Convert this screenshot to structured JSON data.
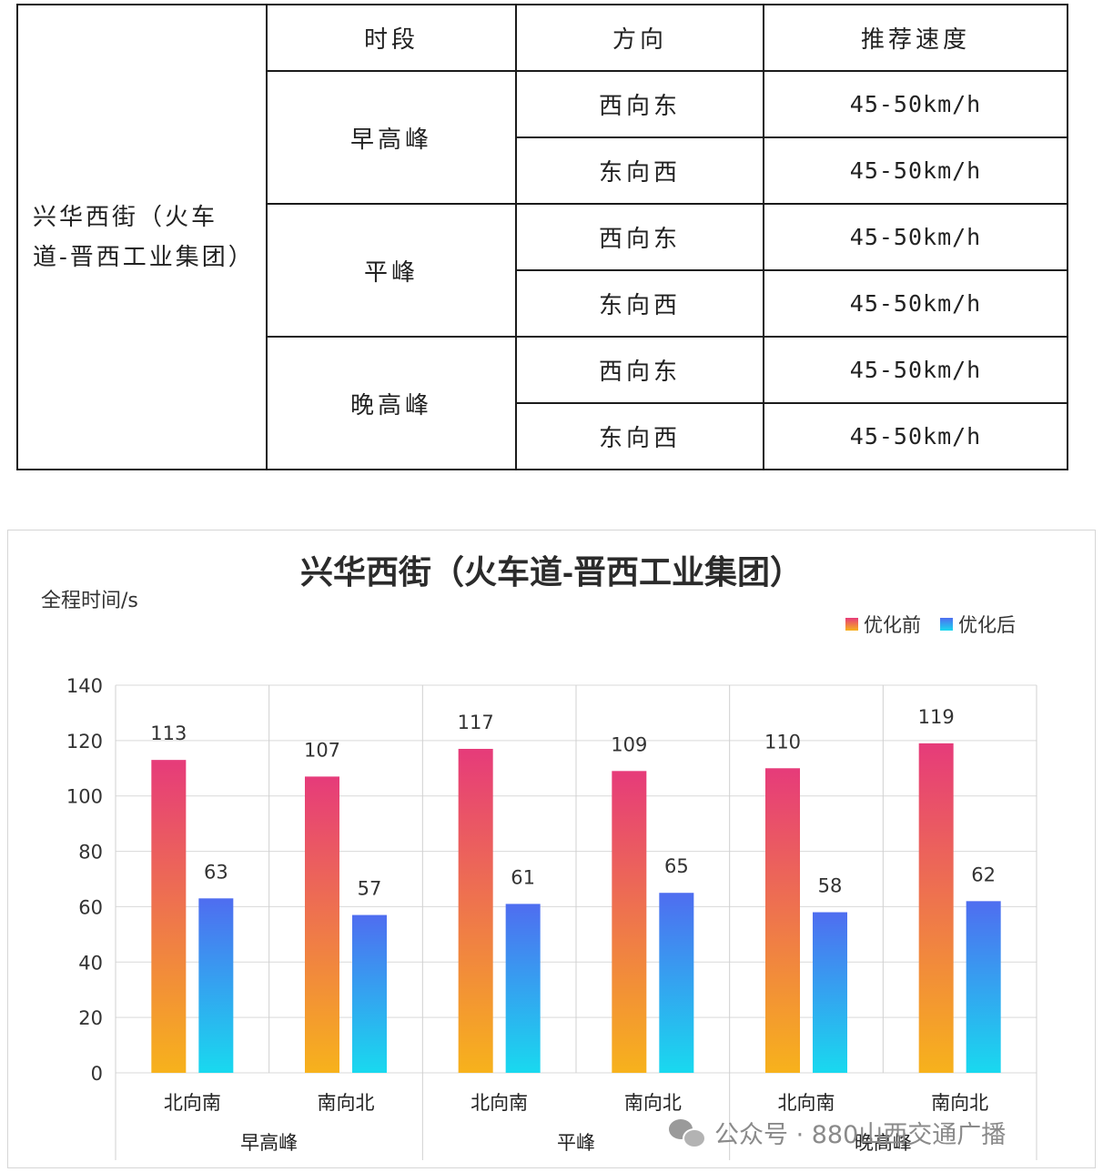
{
  "table": {
    "headers": {
      "period": "时段",
      "direction": "方向",
      "speed": "推荐速度"
    },
    "road": "兴华西街（火车道-晋西工业集团）",
    "periods": [
      {
        "name": "早高峰",
        "rows": [
          {
            "direction": "西向东",
            "speed": "45-50km/h"
          },
          {
            "direction": "东向西",
            "speed": "45-50km/h"
          }
        ]
      },
      {
        "name": "平峰",
        "rows": [
          {
            "direction": "西向东",
            "speed": "45-50km/h"
          },
          {
            "direction": "东向西",
            "speed": "45-50km/h"
          }
        ]
      },
      {
        "name": "晚高峰",
        "rows": [
          {
            "direction": "西向东",
            "speed": "45-50km/h"
          },
          {
            "direction": "东向西",
            "speed": "45-50km/h"
          }
        ]
      }
    ]
  },
  "chart_data": {
    "type": "bar",
    "title": "兴华西街（火车道-晋西工业集团）",
    "ylabel": "全程时间/s",
    "xlabel": "",
    "ylim": [
      0,
      140
    ],
    "yticks": [
      0,
      20,
      40,
      60,
      80,
      100,
      120,
      140
    ],
    "grid": true,
    "legend_position": "top-right",
    "categories": [
      "北向南",
      "南向北",
      "北向南",
      "南向北",
      "北向南",
      "南向北"
    ],
    "groups": [
      {
        "label": "早高峰",
        "span": [
          0,
          1
        ]
      },
      {
        "label": "平峰",
        "span": [
          2,
          3
        ]
      },
      {
        "label": "晚高峰",
        "span": [
          4,
          5
        ]
      }
    ],
    "series": [
      {
        "name": "优化前",
        "values": [
          113,
          107,
          117,
          109,
          110,
          119
        ],
        "color_top": "#e63b7a",
        "color_bottom": "#f7b21c"
      },
      {
        "name": "优化后",
        "values": [
          63,
          57,
          61,
          65,
          58,
          62
        ],
        "color_top": "#4f6df0",
        "color_bottom": "#19d9ef"
      }
    ]
  },
  "watermark": {
    "text": "公众号 · 880山西交通广播",
    "icon": "wechat-icon"
  }
}
